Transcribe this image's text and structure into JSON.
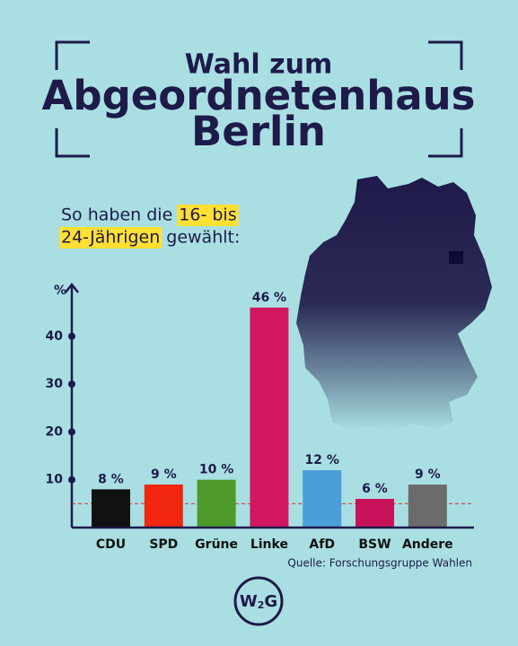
{
  "title_lines": [
    "Wahl zum",
    "Abgeordnetenhaus",
    "Berlin"
  ],
  "subtitle_parts": [
    "So haben die",
    "16- bis",
    "24-Jährigen",
    "gewählt:"
  ],
  "source": "Quelle: Forschungsgruppe Wahlen",
  "logo": [
    "W",
    "2",
    "G"
  ],
  "chart_data": {
    "type": "bar",
    "y_label": "%",
    "categories": [
      "CDU",
      "SPD",
      "Grüne",
      "Linke",
      "AfD",
      "BSW",
      "Andere"
    ],
    "values": [
      8,
      9,
      10,
      46,
      12,
      6,
      9
    ],
    "value_labels": [
      "8 %",
      "9 %",
      "10 %",
      "46 %",
      "12 %",
      "6 %",
      "9 %"
    ],
    "colors": [
      "#111111",
      "#f0260f",
      "#4e9a2b",
      "#d0175f",
      "#4a9fd8",
      "#c8135c",
      "#6b6b6b"
    ],
    "ylim": [
      0,
      50
    ],
    "yticks": [
      10,
      20,
      30,
      40
    ],
    "threshold": 5
  }
}
